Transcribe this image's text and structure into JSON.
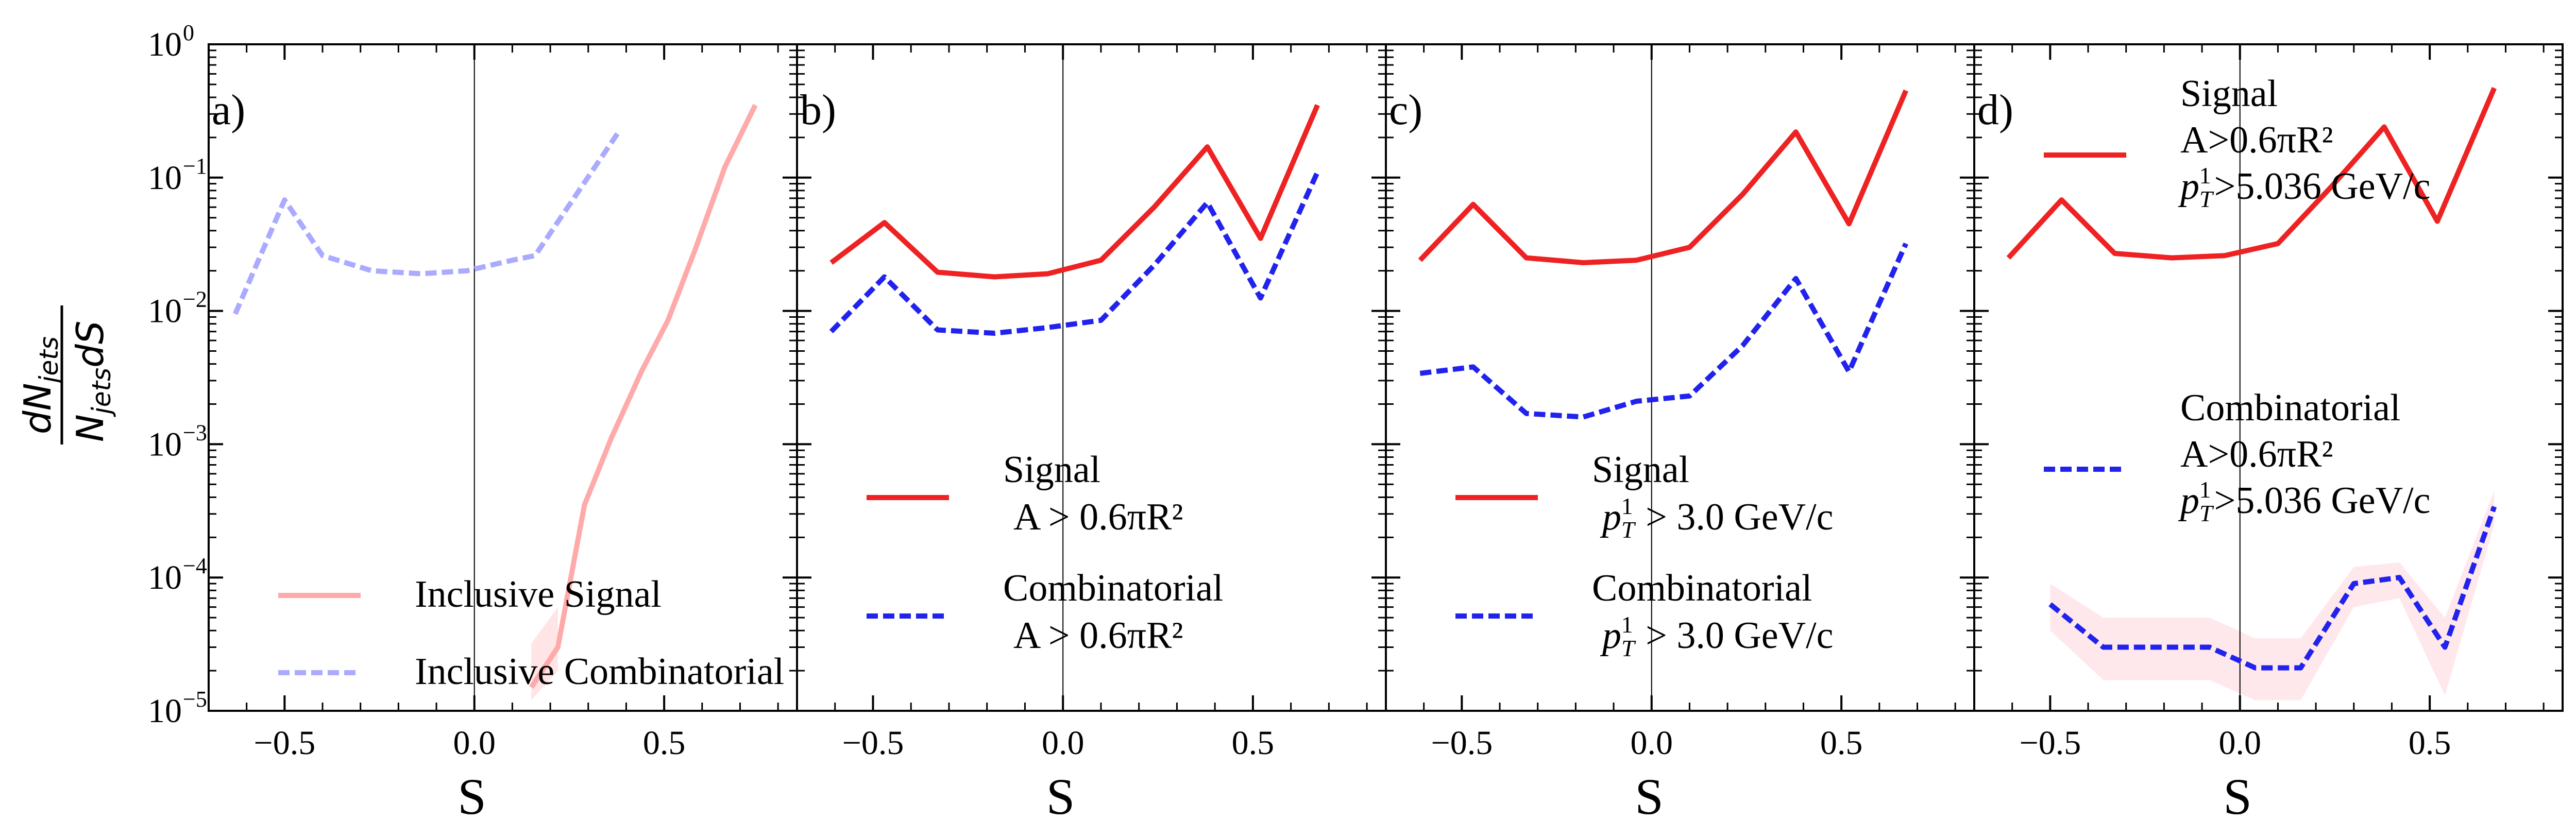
{
  "figure": {
    "ylabel_numerator": "dN",
    "ylabel_numerator_sub": "jets",
    "ylabel_denominator": "N",
    "ylabel_denominator_sub": "jets",
    "ylabel_denominator_tail": "dS"
  },
  "chart_data": [
    {
      "type": "line",
      "panel": "a)",
      "xlabel": "S",
      "yscale": "log",
      "ylim": [
        1e-05,
        1
      ],
      "xlim": [
        -0.7,
        0.85
      ],
      "xticks": [
        -0.5,
        0.0,
        0.5
      ],
      "xtick_labels": [
        "−0.5",
        "0.0",
        "0.5"
      ],
      "yticks": [
        {
          "base": "10",
          "exp": "0"
        },
        {
          "base": "10",
          "exp": "−1"
        },
        {
          "base": "10",
          "exp": "−2"
        },
        {
          "base": "10",
          "exp": "−3"
        },
        {
          "base": "10",
          "exp": "−4"
        },
        {
          "base": "10",
          "exp": "−5"
        }
      ],
      "legend_placement": "lower-center",
      "series": [
        {
          "name": "Inclusive Signal",
          "legend_lines": [
            "Inclusive Signal"
          ],
          "color": "#ffaaaa",
          "style": "solid",
          "x": [
            0.15,
            0.22,
            0.29,
            0.36,
            0.44,
            0.51,
            0.58,
            0.66,
            0.74
          ],
          "y": [
            1.5e-05,
            3e-05,
            0.00035,
            0.0011,
            0.0035,
            0.0085,
            0.028,
            0.12,
            0.35
          ],
          "band": {
            "color": "#ffe5e5",
            "x": [
              0.15,
              0.22
            ],
            "y_low": [
              1.2e-05,
              2e-05
            ],
            "y_high": [
              3.2e-05,
              6e-05
            ]
          }
        },
        {
          "name": "Inclusive Combinatorial",
          "legend_lines": [
            "Inclusive Combinatorial"
          ],
          "color": "#aaaaff",
          "style": "dashed",
          "x": [
            -0.63,
            -0.5,
            -0.4,
            -0.27,
            -0.14,
            -0.02,
            0.1,
            0.16,
            0.38
          ],
          "y": [
            0.0095,
            0.068,
            0.026,
            0.02,
            0.019,
            0.02,
            0.024,
            0.026,
            0.22
          ]
        }
      ]
    },
    {
      "type": "line",
      "panel": "b)",
      "xlabel": "S",
      "yscale": "log",
      "ylim": [
        1e-05,
        1
      ],
      "xlim": [
        -0.7,
        0.85
      ],
      "xticks": [
        -0.5,
        0.0,
        0.5
      ],
      "xtick_labels": [
        "−0.5",
        "0.0",
        "0.5"
      ],
      "legend_placement": "lower-center",
      "series": [
        {
          "name": "Signal A > 0.6πR²",
          "legend_lines": [
            "Signal",
            "A > 0.6πR²"
          ],
          "color": "#ee2222",
          "style": "solid",
          "x": [
            -0.61,
            -0.47,
            -0.33,
            -0.18,
            -0.04,
            0.1,
            0.24,
            0.38,
            0.52,
            0.67
          ],
          "y": [
            0.023,
            0.046,
            0.0195,
            0.018,
            0.019,
            0.024,
            0.06,
            0.17,
            0.035,
            0.35
          ]
        },
        {
          "name": "Combinatorial A > 0.6πR²",
          "legend_lines": [
            "Combinatorial",
            "A > 0.6πR²"
          ],
          "color": "#2222ee",
          "style": "dashed",
          "x": [
            -0.61,
            -0.47,
            -0.33,
            -0.18,
            -0.04,
            0.1,
            0.24,
            0.38,
            0.52,
            0.67
          ],
          "y": [
            0.007,
            0.018,
            0.0072,
            0.0068,
            0.0075,
            0.0085,
            0.022,
            0.065,
            0.0125,
            0.11
          ]
        }
      ]
    },
    {
      "type": "line",
      "panel": "c)",
      "xlabel": "S",
      "yscale": "log",
      "ylim": [
        1e-05,
        1
      ],
      "xlim": [
        -0.7,
        0.85
      ],
      "xticks": [
        -0.5,
        0.0,
        0.5
      ],
      "xtick_labels": [
        "−0.5",
        "0.0",
        "0.5"
      ],
      "legend_placement": "lower-center",
      "series": [
        {
          "name": "Signal p_T^1 > 3.0 GeV/c",
          "legend_lines": [
            "Signal",
            "p_T^1 > 3.0 GeV/c"
          ],
          "color": "#ee2222",
          "style": "solid",
          "x": [
            -0.61,
            -0.47,
            -0.33,
            -0.18,
            -0.04,
            0.1,
            0.24,
            0.38,
            0.52,
            0.67
          ],
          "y": [
            0.024,
            0.063,
            0.025,
            0.023,
            0.024,
            0.03,
            0.075,
            0.22,
            0.045,
            0.45
          ]
        },
        {
          "name": "Combinatorial p_T^1 > 3.0 GeV/c",
          "legend_lines": [
            "Combinatorial",
            "p_T^1 > 3.0 GeV/c"
          ],
          "color": "#2222ee",
          "style": "dashed",
          "x": [
            -0.61,
            -0.47,
            -0.33,
            -0.18,
            -0.04,
            0.1,
            0.24,
            0.38,
            0.52,
            0.67
          ],
          "y": [
            0.0034,
            0.0038,
            0.0017,
            0.0016,
            0.0021,
            0.0023,
            0.0055,
            0.0175,
            0.0035,
            0.032
          ]
        }
      ]
    },
    {
      "type": "line",
      "panel": "d)",
      "xlabel": "S",
      "yscale": "log",
      "ylim": [
        1e-05,
        1
      ],
      "xlim": [
        -0.7,
        0.85
      ],
      "xticks": [
        -0.5,
        0.0,
        0.5
      ],
      "xtick_labels": [
        "−0.5",
        "0.0",
        "0.5"
      ],
      "legend_placement": "upper-left",
      "series": [
        {
          "name": "Signal A>0.6πR² p_T^1>5.036 GeV/c",
          "legend_lines": [
            "Signal",
            "A>0.6πR²",
            "p_T^1>5.036 GeV/c"
          ],
          "color": "#ee2222",
          "style": "solid",
          "x": [
            -0.61,
            -0.47,
            -0.33,
            -0.18,
            -0.04,
            0.1,
            0.24,
            0.38,
            0.52,
            0.67
          ],
          "y": [
            0.025,
            0.068,
            0.027,
            0.025,
            0.026,
            0.032,
            0.085,
            0.24,
            0.047,
            0.47
          ]
        },
        {
          "name": "Combinatorial A>0.6πR² p_T^1>5.036 GeV/c",
          "legend_lines": [
            "Combinatorial",
            "A>0.6πR²",
            "p_T^1>5.036 GeV/c"
          ],
          "color": "#2222ee",
          "style": "dashed",
          "x": [
            -0.5,
            -0.36,
            -0.22,
            -0.08,
            0.04,
            0.16,
            0.3,
            0.42,
            0.54,
            0.67
          ],
          "y": [
            6.3e-05,
            3e-05,
            3e-05,
            3e-05,
            2.1e-05,
            2.1e-05,
            9e-05,
            0.0001,
            3e-05,
            0.00034
          ],
          "band": {
            "color": "#ffe8ec",
            "x": [
              -0.5,
              -0.36,
              -0.22,
              -0.08,
              0.04,
              0.16,
              0.3,
              0.42,
              0.54,
              0.67
            ],
            "y_low": [
              4e-05,
              1.7e-05,
              1.7e-05,
              1.7e-05,
              1.2e-05,
              1.2e-05,
              6e-05,
              7e-05,
              1.3e-05,
              0.00025
            ],
            "y_high": [
              9e-05,
              5e-05,
              5e-05,
              5e-05,
              3.5e-05,
              3.5e-05,
              0.00012,
              0.00013,
              5e-05,
              0.00045
            ]
          }
        }
      ]
    }
  ]
}
